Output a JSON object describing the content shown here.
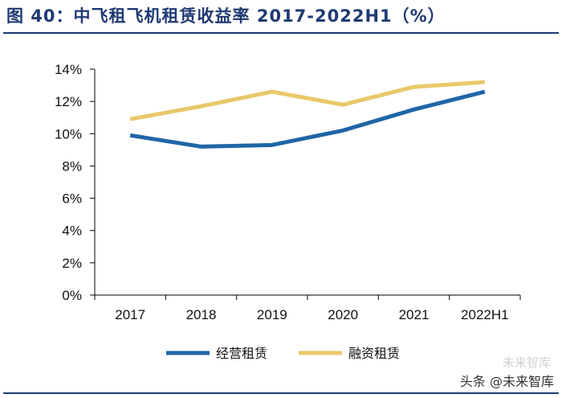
{
  "title": "图 40：中飞租飞机租赁收益率 2017-2022H1（%）",
  "watermark": "头条 @未来智库",
  "watermark_faint": "未来智库",
  "colors": {
    "title": "#1f3a73",
    "series_operating": "#1f66a6",
    "series_finance": "#e9c86a",
    "axis": "#000000"
  },
  "chart_data": {
    "type": "line",
    "title": "图 40：中飞租飞机租赁收益率 2017-2022H1（%）",
    "categories": [
      "2017",
      "2018",
      "2019",
      "2020",
      "2021",
      "2022H1"
    ],
    "y_tick_labels": [
      "0%",
      "2%",
      "4%",
      "6%",
      "8%",
      "10%",
      "12%",
      "14%"
    ],
    "ylim": [
      0,
      14
    ],
    "y_unit": "%",
    "grid": false,
    "legend_position": "bottom",
    "series": [
      {
        "name": "经营租赁",
        "color": "#1f66a6",
        "values": [
          9.9,
          9.2,
          9.3,
          10.2,
          11.5,
          12.6
        ]
      },
      {
        "name": "融资租赁",
        "color": "#e9c86a",
        "values": [
          10.9,
          11.7,
          12.6,
          11.8,
          12.9,
          13.2
        ]
      }
    ]
  }
}
